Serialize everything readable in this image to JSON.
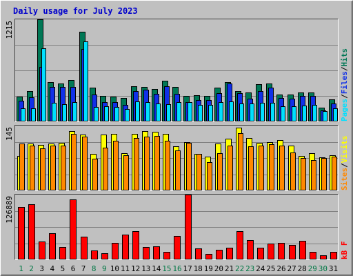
{
  "chart_data": {
    "type": "bar",
    "title": "Daily usage for July 2023",
    "categories": [
      "1",
      "2",
      "3",
      "4",
      "5",
      "6",
      "7",
      "8",
      "9",
      "10",
      "11",
      "12",
      "13",
      "14",
      "15",
      "16",
      "17",
      "18",
      "19",
      "20",
      "21",
      "22",
      "23",
      "24",
      "25",
      "26",
      "27",
      "28",
      "29",
      "30",
      "31"
    ],
    "weekend_days": [
      "1",
      "2",
      "8",
      "9",
      "15",
      "16",
      "22",
      "23",
      "29",
      "30"
    ],
    "colors": {
      "title": "#0000cc",
      "background": "#c0c0c0",
      "weekday_label": "#000000",
      "weekend_label": "#007744",
      "hits": "#007755",
      "files": "#1030e8",
      "pages": "#00e0ff",
      "visits": "#ffff00",
      "sites": "#ff8800",
      "kbytes": "#ff0000"
    },
    "panels": [
      {
        "id": "hits_files_pages",
        "ymax_label": "1215",
        "ylim": [
          0,
          1215
        ],
        "grid": true,
        "legend": [
          {
            "text": "Pages",
            "color": "#00e0ff"
          },
          {
            "text": "/",
            "color": "#000000"
          },
          {
            "text": "Files",
            "color": "#1030e8"
          },
          {
            "text": "/",
            "color": "#000000"
          },
          {
            "text": "Hits",
            "color": "#007755"
          }
        ],
        "series": [
          {
            "name": "Hits",
            "values": [
              296,
              363,
              1215,
              469,
              453,
              489,
              1067,
              405,
              306,
              296,
              276,
              419,
              409,
              389,
              485,
              409,
              306,
              310,
              306,
              405,
              469,
              365,
              345,
              443,
              449,
              319,
              317,
              345,
              345,
              164,
              262
            ]
          },
          {
            "name": "Files",
            "values": [
              244,
              290,
              652,
              411,
              411,
              407,
              862,
              318,
              232,
              232,
              197,
              365,
              381,
              327,
              419,
              331,
              232,
              254,
              254,
              333,
              452,
              337,
              274,
              365,
              405,
              276,
              274,
              306,
              306,
              131,
              216
            ]
          },
          {
            "name": "Pages",
            "values": [
              158,
              158,
              872,
              219,
              209,
              227,
              952,
              171,
              179,
              173,
              147,
              234,
              227,
              210,
              209,
              232,
              226,
              199,
              199,
              232,
              240,
              217,
              212,
              224,
              225,
              180,
              180,
              186,
              195,
              125,
              157
            ]
          }
        ]
      },
      {
        "id": "visits_sites",
        "ymax_label": "145",
        "ylim": [
          0,
          145
        ],
        "grid": true,
        "legend": [
          {
            "text": "Sites",
            "color": "#ff8800"
          },
          {
            "text": "/",
            "color": "#000000"
          },
          {
            "text": "Visits",
            "color": "#ffff00"
          }
        ],
        "series": [
          {
            "name": "Visits",
            "values": [
              77,
              105,
              102,
              105,
              107,
              133,
              125,
              82,
              125,
              126,
              84,
              126,
              133,
              131,
              127,
              98,
              108,
              82,
              75,
              105,
              115,
              140,
              117,
              107,
              108,
              112,
              101,
              77,
              83,
              74,
              79
            ]
          },
          {
            "name": "Sites",
            "values": [
              105,
              101,
              94,
              100,
              100,
              127,
              120,
              71,
              96,
              111,
              79,
              118,
              120,
              122,
              111,
              89,
              107,
              81,
              64,
              83,
              100,
              128,
              98,
              101,
              104,
              101,
              85,
              73,
              68,
              72,
              75
            ]
          }
        ]
      },
      {
        "id": "kbytes",
        "ymax_label": "126889",
        "ylim": [
          0,
          126889
        ],
        "grid": true,
        "legend": [
          {
            "text": "kB F",
            "color": "#ff0000"
          }
        ],
        "series": [
          {
            "name": "kB F",
            "values": [
              102000,
              108000,
              34500,
              51500,
              24800,
              118000,
              44700,
              17000,
              11500,
              33000,
              48000,
              56000,
              24800,
              25500,
              14300,
              46500,
              126889,
              21000,
              10500,
              18500,
              23500,
              56000,
              38000,
              23000,
              30500,
              32000,
              29000,
              36200,
              15000,
              7500,
              14300
            ]
          }
        ]
      }
    ]
  }
}
